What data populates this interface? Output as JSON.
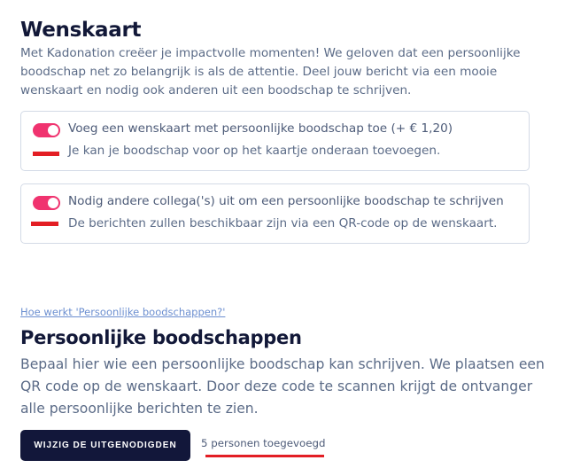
{
  "wenskaart": {
    "title": "Wenskaart",
    "description": "Met Kadonation creëer je impactvolle momenten! We geloven dat een persoonlijke boodschap net zo belangrijk is als de attentie. Deel jouw bericht via een mooie wenskaart en nodig ook anderen uit een boodschap te schrijven.",
    "options": [
      {
        "label": "Voeg een wenskaart met persoonlijke boodschap toe (+ € 1,20)",
        "sublabel": "Je kan je boodschap voor op het kaartje onderaan toevoegen.",
        "enabled": true
      },
      {
        "label": "Nodig andere collega('s) uit om een persoonlijke boodschap te schrijven",
        "sublabel": "De berichten zullen beschikbaar zijn via een QR-code op de wenskaart.",
        "enabled": true
      }
    ]
  },
  "boodschappen": {
    "help_link": "Hoe werkt 'Persoonlijke boodschappen?'",
    "title": "Persoonlijke boodschappen",
    "description": "Bepaal hier wie een persoonlijke boodschap kan schrijven. We plaatsen een QR code op de wenskaart. Door deze code te scannen krijgt de ontvanger alle persoonlijke berichten te zien.",
    "button_label": "WIJZIG DE UITGENODIGDEN",
    "count_label": "5 personen toegevoegd"
  },
  "colors": {
    "toggle_on": "#f0336f",
    "button_bg": "#12173a",
    "annotation_red": "#e31e24"
  }
}
